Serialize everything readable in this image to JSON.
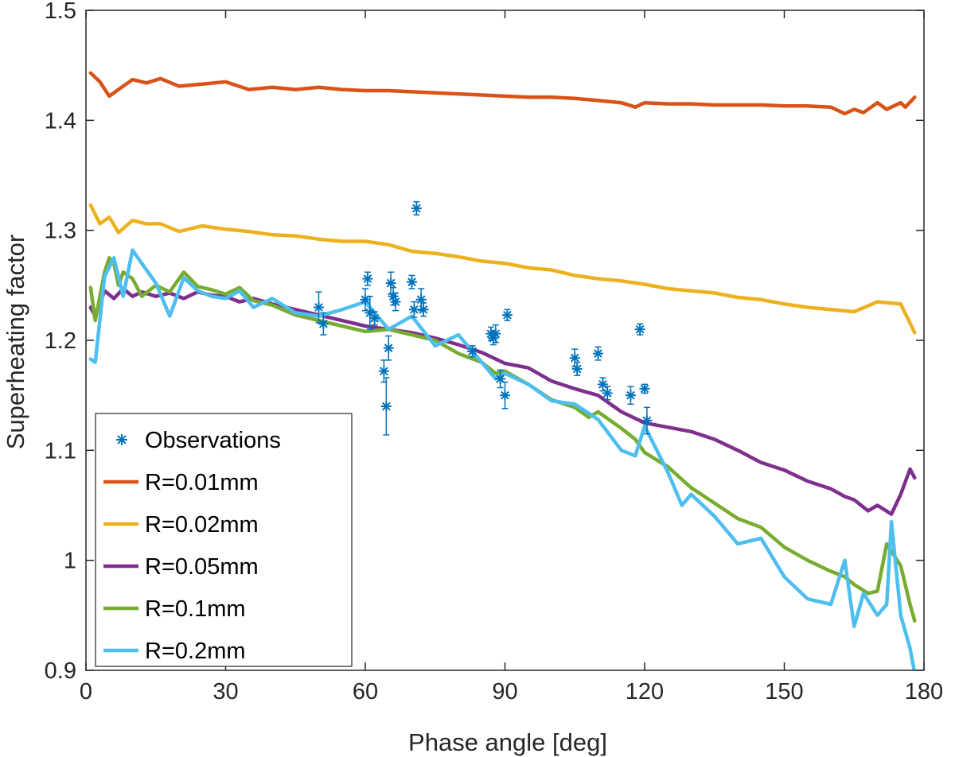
{
  "chart_data": {
    "type": "line",
    "xlabel": "Phase angle [deg]",
    "ylabel": "Superheating factor",
    "xlim": [
      0,
      180
    ],
    "ylim": [
      0.9,
      1.5
    ],
    "xticks": [
      0,
      30,
      60,
      90,
      120,
      150,
      180
    ],
    "xtick_labels": [
      "0",
      "30",
      "60",
      "90",
      "120",
      "150",
      "180"
    ],
    "yticks": [
      0.9,
      1.0,
      1.1,
      1.2,
      1.3,
      1.4,
      1.5
    ],
    "ytick_labels": [
      "0.9",
      "1",
      "1.1",
      "1.2",
      "1.3",
      "1.4",
      "1.5"
    ],
    "legend_position": "bottom-left",
    "series": [
      {
        "name": "R=0.01mm",
        "color": "#D95319",
        "x": [
          1,
          3,
          5,
          7,
          10,
          13,
          16,
          20,
          25,
          30,
          35,
          40,
          45,
          50,
          55,
          60,
          65,
          70,
          75,
          80,
          85,
          90,
          95,
          100,
          105,
          110,
          115,
          118,
          120,
          125,
          130,
          135,
          140,
          145,
          150,
          155,
          160,
          163,
          165,
          167,
          170,
          172,
          175,
          176,
          178
        ],
        "y": [
          1.443,
          1.435,
          1.422,
          1.428,
          1.437,
          1.434,
          1.438,
          1.431,
          1.433,
          1.435,
          1.428,
          1.43,
          1.428,
          1.43,
          1.428,
          1.427,
          1.427,
          1.426,
          1.425,
          1.424,
          1.423,
          1.422,
          1.421,
          1.421,
          1.42,
          1.418,
          1.416,
          1.412,
          1.416,
          1.415,
          1.415,
          1.414,
          1.414,
          1.414,
          1.413,
          1.413,
          1.412,
          1.406,
          1.41,
          1.407,
          1.416,
          1.41,
          1.416,
          1.412,
          1.421
        ]
      },
      {
        "name": "R=0.02mm",
        "color": "#EDB120",
        "x": [
          1,
          3,
          5,
          7,
          10,
          13,
          16,
          20,
          25,
          30,
          35,
          40,
          45,
          50,
          55,
          60,
          65,
          70,
          75,
          80,
          85,
          90,
          95,
          100,
          105,
          110,
          115,
          120,
          125,
          130,
          135,
          140,
          145,
          150,
          155,
          160,
          165,
          170,
          175,
          178
        ],
        "y": [
          1.323,
          1.306,
          1.312,
          1.298,
          1.309,
          1.306,
          1.306,
          1.299,
          1.304,
          1.301,
          1.299,
          1.296,
          1.295,
          1.292,
          1.29,
          1.29,
          1.287,
          1.281,
          1.279,
          1.276,
          1.272,
          1.27,
          1.266,
          1.264,
          1.259,
          1.256,
          1.254,
          1.251,
          1.247,
          1.245,
          1.243,
          1.239,
          1.237,
          1.233,
          1.23,
          1.228,
          1.226,
          1.235,
          1.233,
          1.207
        ]
      },
      {
        "name": "R=0.05mm",
        "color": "#7E2F8E",
        "x": [
          1,
          2,
          4,
          6,
          8,
          10,
          12,
          15,
          18,
          21,
          24,
          27,
          30,
          33,
          36,
          40,
          45,
          50,
          55,
          60,
          65,
          70,
          75,
          80,
          85,
          90,
          95,
          100,
          105,
          110,
          115,
          120,
          125,
          130,
          135,
          140,
          145,
          150,
          155,
          160,
          163,
          165,
          168,
          170,
          173,
          175,
          177,
          178
        ],
        "y": [
          1.23,
          1.222,
          1.245,
          1.238,
          1.247,
          1.24,
          1.244,
          1.24,
          1.243,
          1.238,
          1.244,
          1.241,
          1.24,
          1.235,
          1.238,
          1.233,
          1.228,
          1.223,
          1.218,
          1.213,
          1.21,
          1.207,
          1.202,
          1.196,
          1.189,
          1.179,
          1.175,
          1.163,
          1.156,
          1.15,
          1.135,
          1.125,
          1.121,
          1.117,
          1.11,
          1.1,
          1.089,
          1.082,
          1.072,
          1.065,
          1.058,
          1.055,
          1.045,
          1.05,
          1.042,
          1.06,
          1.083,
          1.075
        ]
      },
      {
        "name": "R=0.1mm",
        "color": "#77AC30",
        "x": [
          1,
          2,
          4,
          5,
          6,
          7,
          8,
          10,
          12,
          15,
          18,
          21,
          24,
          27,
          30,
          33,
          36,
          40,
          45,
          50,
          55,
          60,
          65,
          70,
          75,
          80,
          85,
          88,
          90,
          95,
          100,
          105,
          108,
          110,
          115,
          118,
          120,
          125,
          130,
          135,
          140,
          145,
          150,
          155,
          160,
          163,
          165,
          168,
          170,
          172,
          175,
          177,
          178
        ],
        "y": [
          1.248,
          1.218,
          1.262,
          1.275,
          1.27,
          1.25,
          1.262,
          1.256,
          1.24,
          1.25,
          1.244,
          1.262,
          1.249,
          1.246,
          1.242,
          1.248,
          1.236,
          1.232,
          1.223,
          1.218,
          1.213,
          1.208,
          1.21,
          1.205,
          1.2,
          1.188,
          1.18,
          1.17,
          1.172,
          1.16,
          1.146,
          1.139,
          1.13,
          1.135,
          1.12,
          1.11,
          1.098,
          1.085,
          1.066,
          1.052,
          1.038,
          1.03,
          1.012,
          1.0,
          0.99,
          0.985,
          0.978,
          0.97,
          0.972,
          1.015,
          0.995,
          0.96,
          0.945
        ]
      },
      {
        "name": "R=0.2mm",
        "color": "#4DBEEE",
        "x": [
          1,
          2,
          4,
          6,
          8,
          10,
          12,
          15,
          18,
          21,
          24,
          27,
          30,
          33,
          36,
          40,
          45,
          50,
          55,
          60,
          65,
          70,
          75,
          80,
          85,
          88,
          90,
          95,
          100,
          105,
          110,
          115,
          118,
          120,
          125,
          128,
          130,
          135,
          140,
          145,
          150,
          155,
          160,
          163,
          165,
          167,
          170,
          172,
          173,
          175,
          177,
          178
        ],
        "y": [
          1.183,
          1.18,
          1.258,
          1.275,
          1.24,
          1.282,
          1.27,
          1.252,
          1.222,
          1.257,
          1.245,
          1.24,
          1.238,
          1.245,
          1.23,
          1.238,
          1.225,
          1.222,
          1.228,
          1.235,
          1.21,
          1.222,
          1.195,
          1.205,
          1.18,
          1.165,
          1.17,
          1.16,
          1.145,
          1.142,
          1.128,
          1.1,
          1.095,
          1.122,
          1.08,
          1.05,
          1.06,
          1.04,
          1.015,
          1.02,
          0.985,
          0.965,
          0.96,
          1.0,
          0.94,
          0.97,
          0.95,
          0.96,
          1.035,
          0.95,
          0.92,
          0.898
        ]
      }
    ],
    "observations": {
      "name": "Observations",
      "color": "#0072BD",
      "marker": "*",
      "x": [
        50,
        51,
        60,
        60.5,
        61,
        62,
        64,
        64.5,
        65,
        65.5,
        66,
        66.5,
        70,
        70.5,
        71,
        72,
        72.5,
        83,
        87,
        87.5,
        88,
        89,
        90,
        90.5,
        105,
        105.5,
        110,
        111,
        112,
        117,
        119,
        120,
        120.5
      ],
      "y": [
        1.23,
        1.215,
        1.237,
        1.256,
        1.225,
        1.22,
        1.172,
        1.14,
        1.193,
        1.252,
        1.24,
        1.235,
        1.253,
        1.228,
        1.32,
        1.237,
        1.228,
        1.19,
        1.206,
        1.202,
        1.206,
        1.165,
        1.15,
        1.223,
        1.184,
        1.174,
        1.188,
        1.16,
        1.152,
        1.15,
        1.21,
        1.156,
        1.127
      ],
      "err": [
        0.014,
        0.01,
        0.01,
        0.006,
        0.015,
        0.006,
        0.01,
        0.026,
        0.011,
        0.01,
        0.008,
        0.008,
        0.006,
        0.007,
        0.006,
        0.01,
        0.006,
        0.005,
        0.006,
        0.006,
        0.008,
        0.008,
        0.012,
        0.005,
        0.008,
        0.006,
        0.006,
        0.006,
        0.006,
        0.008,
        0.005,
        0.004,
        0.012
      ]
    }
  }
}
